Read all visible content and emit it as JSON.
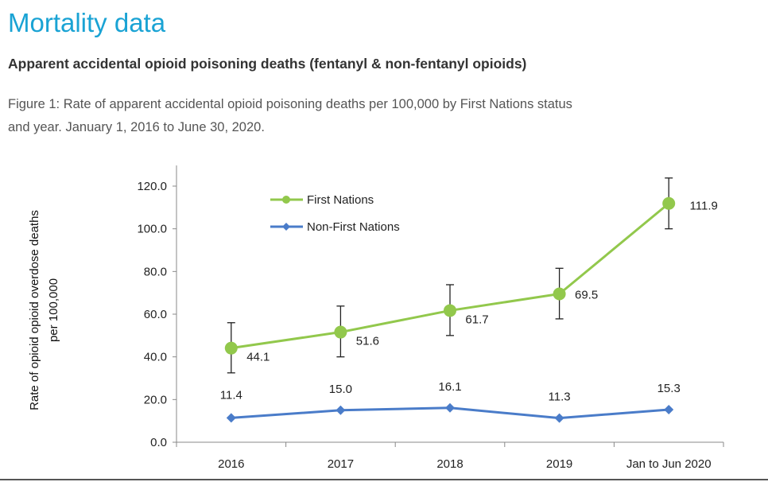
{
  "header": {
    "title": "Mortality data",
    "subtitle": "Apparent accidental opioid poisoning deaths (fentanyl & non-fentanyl opioids)",
    "caption_line1": "Figure 1: Rate of apparent accidental opioid poisoning deaths per 100,000 by First Nations status",
    "caption_line2": "and year. January 1, 2016 to June 30, 2020."
  },
  "chart_data": {
    "type": "line",
    "categories": [
      "2016",
      "2017",
      "2018",
      "2019",
      "Jan to Jun 2020"
    ],
    "ylabel_line1": "Rate of opioid opioid overdose deaths",
    "ylabel_line2": "per 100,000",
    "ylim": [
      0,
      120
    ],
    "yticks": [
      "0.0",
      "20.0",
      "40.0",
      "60.0",
      "80.0",
      "100.0",
      "120.0"
    ],
    "legend_position": "top-left",
    "grid": false,
    "series": [
      {
        "name": "First Nations",
        "color": "#92c84c",
        "marker": "circle",
        "values": [
          44.1,
          51.6,
          61.7,
          69.5,
          111.9
        ],
        "labels": [
          "44.1",
          "51.6",
          "61.7",
          "69.5",
          "111.9"
        ],
        "error_low": [
          32.5,
          40.0,
          50.0,
          57.8,
          100.0
        ],
        "error_high": [
          56.0,
          63.8,
          73.8,
          81.5,
          123.8
        ]
      },
      {
        "name": "Non-First Nations",
        "color": "#4a7cc9",
        "marker": "diamond",
        "values": [
          11.4,
          15.0,
          16.1,
          11.3,
          15.3
        ],
        "labels": [
          "11.4",
          "15.0",
          "16.1",
          "11.3",
          "15.3"
        ]
      }
    ]
  }
}
